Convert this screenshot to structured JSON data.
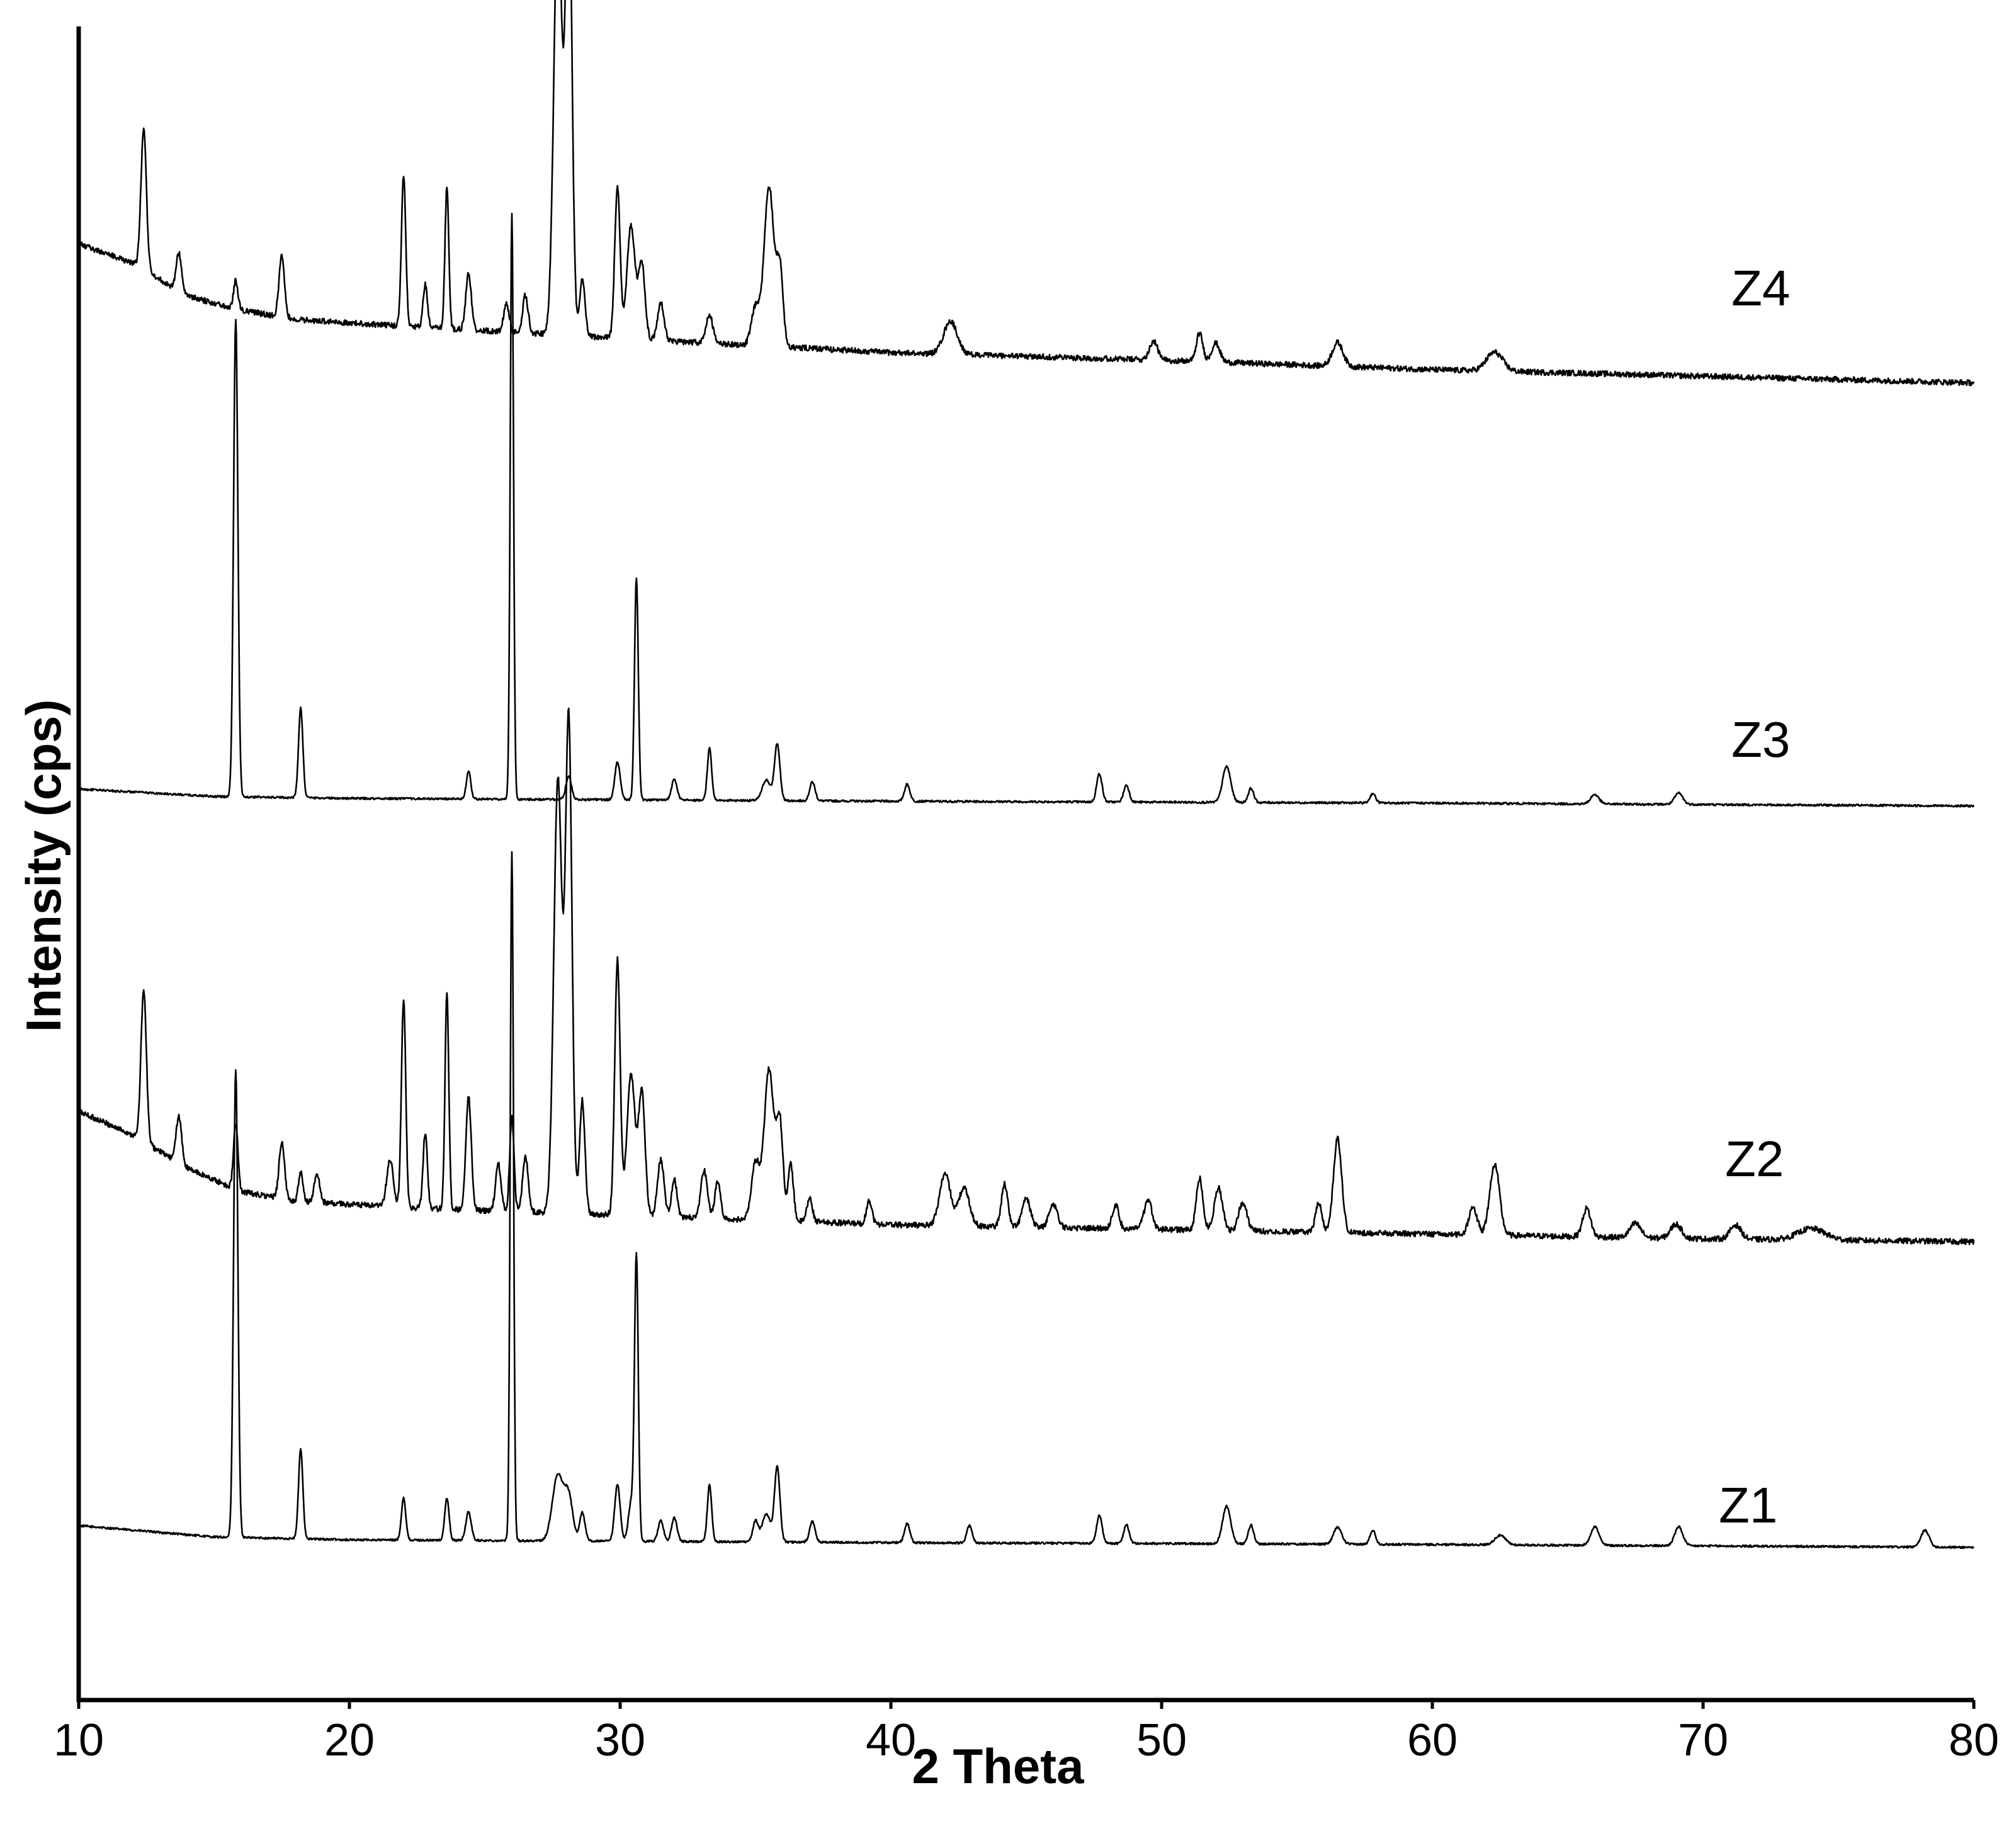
{
  "chart_data": {
    "type": "line",
    "xlabel": "2 Theta",
    "ylabel": "Intensity (cps)",
    "xlim": [
      10,
      80
    ],
    "x_ticks": [
      "10",
      "20",
      "30",
      "40",
      "50",
      "60",
      "70",
      "80"
    ],
    "y_ticks": [],
    "grid": false,
    "legend": "none",
    "series": [
      {
        "name": "Z1",
        "color": "#000000",
        "baseline": [
          [
            10,
            78
          ],
          [
            15,
            66
          ],
          [
            20,
            63
          ],
          [
            40,
            60
          ],
          [
            60,
            58
          ],
          [
            80,
            55
          ]
        ],
        "peaks": [
          [
            15.8,
            495,
            0.08
          ],
          [
            18.2,
            95,
            0.08
          ],
          [
            22.0,
            45,
            0.08
          ],
          [
            23.6,
            45,
            0.08
          ],
          [
            24.4,
            30,
            0.1
          ],
          [
            26.0,
            730,
            0.06
          ],
          [
            27.7,
            70,
            0.2
          ],
          [
            28.1,
            45,
            0.15
          ],
          [
            28.6,
            30,
            0.1
          ],
          [
            29.9,
            60,
            0.1
          ],
          [
            30.4,
            40,
            0.1
          ],
          [
            30.6,
            300,
            0.07
          ],
          [
            31.5,
            22,
            0.1
          ],
          [
            32.0,
            25,
            0.1
          ],
          [
            33.3,
            60,
            0.08
          ],
          [
            35.0,
            22,
            0.1
          ],
          [
            35.4,
            30,
            0.15
          ],
          [
            35.8,
            80,
            0.1
          ],
          [
            37.1,
            22,
            0.1
          ],
          [
            40.6,
            20,
            0.1
          ],
          [
            42.9,
            18,
            0.1
          ],
          [
            47.7,
            30,
            0.1
          ],
          [
            48.7,
            20,
            0.1
          ],
          [
            52.4,
            40,
            0.15
          ],
          [
            53.3,
            20,
            0.1
          ],
          [
            56.5,
            18,
            0.15
          ],
          [
            57.8,
            15,
            0.1
          ],
          [
            62.5,
            10,
            0.2
          ],
          [
            66.0,
            20,
            0.15
          ],
          [
            69.1,
            20,
            0.15
          ],
          [
            78.2,
            18,
            0.15
          ]
        ]
      },
      {
        "name": "Z2",
        "color": "#000000",
        "baseline": [
          [
            10,
            150
          ],
          [
            12,
            125
          ],
          [
            14,
            90
          ],
          [
            16,
            65
          ],
          [
            18,
            55
          ],
          [
            22,
            48
          ],
          [
            30,
            40
          ],
          [
            40,
            30
          ],
          [
            50,
            25
          ],
          [
            60,
            20
          ],
          [
            70,
            15
          ],
          [
            80,
            12
          ]
        ],
        "peaks": [
          [
            12.4,
            160,
            0.1
          ],
          [
            13.7,
            50,
            0.1
          ],
          [
            15.8,
            70,
            0.08
          ],
          [
            17.5,
            60,
            0.1
          ],
          [
            18.2,
            30,
            0.08
          ],
          [
            18.8,
            30,
            0.1
          ],
          [
            21.5,
            50,
            0.12
          ],
          [
            22.0,
            220,
            0.08
          ],
          [
            22.8,
            80,
            0.08
          ],
          [
            23.6,
            230,
            0.07
          ],
          [
            24.4,
            120,
            0.1
          ],
          [
            25.5,
            50,
            0.1
          ],
          [
            26.0,
            100,
            0.08
          ],
          [
            26.5,
            60,
            0.1
          ],
          [
            27.7,
            460,
            0.15
          ],
          [
            28.1,
            520,
            0.12
          ],
          [
            28.6,
            120,
            0.1
          ],
          [
            29.9,
            270,
            0.1
          ],
          [
            30.4,
            150,
            0.15
          ],
          [
            30.8,
            130,
            0.12
          ],
          [
            31.5,
            60,
            0.12
          ],
          [
            32.0,
            40,
            0.1
          ],
          [
            33.1,
            50,
            0.12
          ],
          [
            33.6,
            40,
            0.1
          ],
          [
            35.0,
            60,
            0.15
          ],
          [
            35.5,
            160,
            0.18
          ],
          [
            35.9,
            100,
            0.12
          ],
          [
            36.3,
            60,
            0.1
          ],
          [
            37.0,
            25,
            0.1
          ],
          [
            39.2,
            25,
            0.1
          ],
          [
            42.0,
            55,
            0.2
          ],
          [
            42.7,
            40,
            0.2
          ],
          [
            44.2,
            45,
            0.12
          ],
          [
            45.0,
            30,
            0.15
          ],
          [
            46.0,
            25,
            0.15
          ],
          [
            48.3,
            25,
            0.12
          ],
          [
            49.5,
            30,
            0.15
          ],
          [
            51.4,
            55,
            0.12
          ],
          [
            52.1,
            45,
            0.15
          ],
          [
            53.0,
            30,
            0.15
          ],
          [
            55.8,
            30,
            0.12
          ],
          [
            56.5,
            100,
            0.15
          ],
          [
            61.5,
            30,
            0.15
          ],
          [
            62.3,
            75,
            0.18
          ],
          [
            65.7,
            30,
            0.15
          ],
          [
            67.5,
            15,
            0.2
          ],
          [
            69.0,
            15,
            0.2
          ],
          [
            71.2,
            15,
            0.2
          ],
          [
            74.0,
            12,
            0.5
          ]
        ]
      },
      {
        "name": "Z3",
        "color": "#000000",
        "baseline": [
          [
            10,
            58
          ],
          [
            15,
            50
          ],
          [
            20,
            48
          ],
          [
            40,
            45
          ],
          [
            60,
            43
          ],
          [
            80,
            40
          ]
        ],
        "peaks": [
          [
            15.8,
            505,
            0.08
          ],
          [
            18.2,
            95,
            0.08
          ],
          [
            24.4,
            30,
            0.08
          ],
          [
            26.0,
            620,
            0.06
          ],
          [
            28.1,
            25,
            0.1
          ],
          [
            29.9,
            40,
            0.1
          ],
          [
            30.6,
            235,
            0.07
          ],
          [
            32.0,
            22,
            0.1
          ],
          [
            33.3,
            55,
            0.08
          ],
          [
            35.4,
            22,
            0.15
          ],
          [
            35.8,
            60,
            0.1
          ],
          [
            37.1,
            20,
            0.1
          ],
          [
            40.6,
            18,
            0.1
          ],
          [
            47.7,
            30,
            0.1
          ],
          [
            48.7,
            18,
            0.1
          ],
          [
            52.4,
            38,
            0.15
          ],
          [
            53.3,
            15,
            0.1
          ],
          [
            57.8,
            10,
            0.1
          ],
          [
            66.0,
            10,
            0.15
          ],
          [
            69.1,
            12,
            0.15
          ]
        ]
      },
      {
        "name": "Z4",
        "color": "#000000",
        "baseline": [
          [
            10,
            195
          ],
          [
            12,
            175
          ],
          [
            14,
            140
          ],
          [
            16,
            125
          ],
          [
            18,
            115
          ],
          [
            22,
            108
          ],
          [
            30,
            95
          ],
          [
            40,
            80
          ],
          [
            50,
            72
          ],
          [
            60,
            62
          ],
          [
            70,
            55
          ],
          [
            80,
            48
          ]
        ],
        "peaks": [
          [
            12.4,
            150,
            0.1
          ],
          [
            13.7,
            40,
            0.1
          ],
          [
            15.8,
            30,
            0.08
          ],
          [
            17.5,
            65,
            0.1
          ],
          [
            22.0,
            160,
            0.08
          ],
          [
            22.8,
            45,
            0.08
          ],
          [
            23.6,
            150,
            0.07
          ],
          [
            24.4,
            60,
            0.1
          ],
          [
            25.8,
            30,
            0.1
          ],
          [
            26.5,
            40,
            0.1
          ],
          [
            27.7,
            450,
            0.15
          ],
          [
            28.1,
            490,
            0.12
          ],
          [
            28.6,
            60,
            0.1
          ],
          [
            29.9,
            160,
            0.1
          ],
          [
            30.4,
            120,
            0.15
          ],
          [
            30.8,
            80,
            0.12
          ],
          [
            31.5,
            40,
            0.12
          ],
          [
            33.3,
            30,
            0.12
          ],
          [
            35.0,
            40,
            0.15
          ],
          [
            35.5,
            170,
            0.18
          ],
          [
            35.9,
            80,
            0.12
          ],
          [
            42.2,
            35,
            0.25
          ],
          [
            49.7,
            20,
            0.15
          ],
          [
            51.4,
            30,
            0.12
          ],
          [
            52.0,
            20,
            0.15
          ],
          [
            56.5,
            25,
            0.2
          ],
          [
            62.3,
            20,
            0.3
          ]
        ]
      }
    ]
  }
}
